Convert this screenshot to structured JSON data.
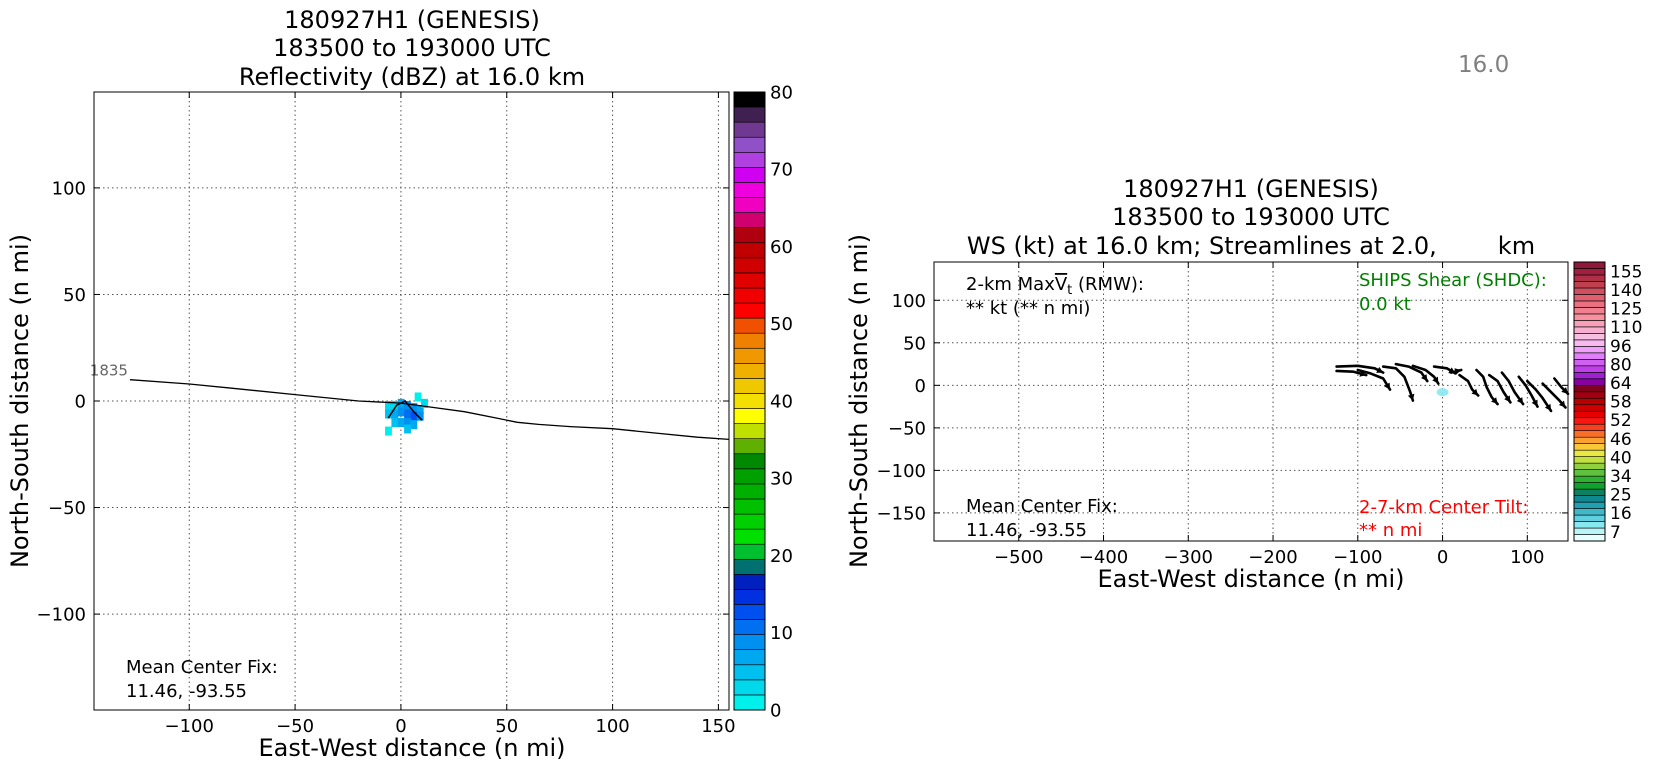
{
  "corner_value": "16.0",
  "chart_data": [
    {
      "type": "heatmap",
      "title_lines": [
        "180927H1 (GENESIS)",
        "183500 to 193000 UTC",
        "Reflectivity (dBZ) at 16.0 km"
      ],
      "xlabel": "East-West distance (n mi)",
      "ylabel": "North-South distance (n mi)",
      "xlim": [
        -145,
        155
      ],
      "ylim": [
        -145,
        145
      ],
      "xticks": [
        -100,
        -50,
        0,
        50,
        100,
        150
      ],
      "xtick_labels": [
        "−100",
        "−50",
        "0",
        "50",
        "100",
        "150"
      ],
      "yticks": [
        -100,
        -50,
        0,
        50,
        100
      ],
      "ytick_labels": [
        "−100",
        "−50",
        "0",
        "50",
        "100"
      ],
      "grid": true,
      "track": {
        "label": "1835",
        "points": [
          [
            -128,
            10
          ],
          [
            -100,
            8
          ],
          [
            -80,
            6
          ],
          [
            -50,
            3
          ],
          [
            -20,
            0
          ],
          [
            0,
            -1
          ],
          [
            15,
            -3
          ],
          [
            30,
            -5
          ],
          [
            45,
            -8
          ],
          [
            55,
            -10
          ],
          [
            65,
            -11
          ],
          [
            80,
            -12
          ],
          [
            100,
            -13
          ],
          [
            120,
            -15
          ],
          [
            140,
            -17
          ],
          [
            155,
            -18
          ]
        ]
      },
      "echo_cells": [
        {
          "x": -6,
          "y": -2,
          "dbz": 2
        },
        {
          "x": -3,
          "y": -2,
          "dbz": 2
        },
        {
          "x": 0,
          "y": -1,
          "dbz": 6
        },
        {
          "x": 3,
          "y": -2,
          "dbz": 8
        },
        {
          "x": 6,
          "y": -3,
          "dbz": 8
        },
        {
          "x": 9,
          "y": -4,
          "dbz": 6
        },
        {
          "x": -6,
          "y": -6,
          "dbz": 4
        },
        {
          "x": -3,
          "y": -6,
          "dbz": 6
        },
        {
          "x": 0,
          "y": -5,
          "dbz": 9
        },
        {
          "x": 3,
          "y": -6,
          "dbz": 11
        },
        {
          "x": 6,
          "y": -7,
          "dbz": 12
        },
        {
          "x": 9,
          "y": -7,
          "dbz": 9
        },
        {
          "x": -3,
          "y": -10,
          "dbz": 4
        },
        {
          "x": 0,
          "y": -10,
          "dbz": 7
        },
        {
          "x": 3,
          "y": -10,
          "dbz": 8
        },
        {
          "x": 6,
          "y": -11,
          "dbz": 6
        },
        {
          "x": -6,
          "y": -14,
          "dbz": 1
        },
        {
          "x": 8,
          "y": 2,
          "dbz": 1
        },
        {
          "x": 11,
          "y": -1,
          "dbz": 3
        },
        {
          "x": 3,
          "y": -13,
          "dbz": 4
        }
      ],
      "center_fix_label": "Mean Center Fix:",
      "center_fix_value": "11.46, -93.55",
      "colorbar": {
        "min": 0,
        "max": 80,
        "ticks": [
          0,
          10,
          20,
          30,
          40,
          50,
          60,
          70,
          80
        ],
        "colors": [
          "#00f0ec",
          "#00d8ec",
          "#00c0f0",
          "#00a8f0",
          "#0090f0",
          "#0070f0",
          "#0050f0",
          "#0030e0",
          "#0020c0",
          "#007070",
          "#00c030",
          "#00e000",
          "#00d000",
          "#00c000",
          "#00b000",
          "#00a000",
          "#008800",
          "#60b000",
          "#c0e000",
          "#ffff00",
          "#f4e000",
          "#f0c800",
          "#f0b000",
          "#f09800",
          "#f08000",
          "#f05000",
          "#ff0000",
          "#f00000",
          "#e00000",
          "#d00000",
          "#c00000",
          "#b00010",
          "#d0006e",
          "#f000c0",
          "#f000e0",
          "#d000f0",
          "#b040e0",
          "#9050c8",
          "#703890",
          "#402050",
          "#000000"
        ]
      }
    },
    {
      "type": "heatmap",
      "title_lines": [
        "180927H1 (GENESIS)",
        "183500 to 193000 UTC",
        "WS (kt) at 16.0 km; Streamlines at 2.0,        km"
      ],
      "xlabel": "East-West distance (n mi)",
      "ylabel": "North-South distance (n mi)",
      "xlim": [
        -600,
        148
      ],
      "ylim": [
        -183,
        145
      ],
      "xticks": [
        -500,
        -400,
        -300,
        -200,
        -100,
        0,
        100
      ],
      "xtick_labels": [
        "−500",
        "−400",
        "−300",
        "−200",
        "−100",
        "0",
        "100"
      ],
      "yticks": [
        -150,
        -100,
        -50,
        0,
        50,
        100
      ],
      "ytick_labels": [
        "−150",
        "−100",
        "−50",
        "0",
        "50",
        "100"
      ],
      "grid": true,
      "vmax_label_prefix": "2-km Max",
      "vmax_symbol": "V",
      "vmax_subscript": "t",
      "vmax_label_suffix": " (RMW):",
      "vmax_value": "** kt (** n mi)",
      "ships_label": "SHIPS Shear (SHDC):",
      "ships_value": "0.0 kt",
      "center_fix_label": "Mean Center Fix:",
      "center_fix_value": "11.46, -93.55",
      "tilt_label": "2-7-km Center Tilt:",
      "tilt_value": "** n mi",
      "ws_patch": {
        "x": 0,
        "y": -8,
        "value": 12
      },
      "streamlines": [
        [
          [
            -125,
            22
          ],
          [
            -100,
            23
          ],
          [
            -80,
            20
          ],
          [
            -70,
            15
          ]
        ],
        [
          [
            -125,
            17
          ],
          [
            -105,
            16
          ],
          [
            -90,
            12
          ]
        ],
        [
          [
            -100,
            18
          ],
          [
            -85,
            14
          ],
          [
            -70,
            8
          ],
          [
            -62,
            -5
          ]
        ],
        [
          [
            -70,
            22
          ],
          [
            -55,
            20
          ],
          [
            -45,
            10
          ],
          [
            -38,
            -8
          ],
          [
            -35,
            -18
          ]
        ],
        [
          [
            -55,
            25
          ],
          [
            -40,
            22
          ],
          [
            -25,
            15
          ],
          [
            -18,
            5
          ]
        ],
        [
          [
            -35,
            23
          ],
          [
            -20,
            18
          ],
          [
            -10,
            10
          ],
          [
            -5,
            2
          ]
        ],
        [
          [
            -10,
            22
          ],
          [
            5,
            20
          ],
          [
            15,
            14
          ]
        ],
        [
          [
            10,
            15
          ],
          [
            22,
            18
          ]
        ],
        [
          [
            20,
            12
          ],
          [
            30,
            5
          ],
          [
            35,
            -5
          ],
          [
            42,
            -12
          ]
        ],
        [
          [
            40,
            18
          ],
          [
            48,
            10
          ],
          [
            52,
            -2
          ],
          [
            58,
            -14
          ],
          [
            65,
            -22
          ]
        ],
        [
          [
            55,
            12
          ],
          [
            65,
            5
          ],
          [
            72,
            -8
          ],
          [
            80,
            -20
          ]
        ],
        [
          [
            70,
            15
          ],
          [
            78,
            5
          ],
          [
            85,
            -8
          ],
          [
            95,
            -22
          ]
        ],
        [
          [
            90,
            10
          ],
          [
            98,
            0
          ],
          [
            105,
            -12
          ],
          [
            112,
            -25
          ]
        ],
        [
          [
            100,
            5
          ],
          [
            110,
            -5
          ],
          [
            118,
            -15
          ],
          [
            128,
            -30
          ]
        ],
        [
          [
            118,
            2
          ],
          [
            128,
            -8
          ],
          [
            138,
            -18
          ],
          [
            145,
            -26
          ]
        ],
        [
          [
            132,
            8
          ],
          [
            140,
            -2
          ],
          [
            148,
            -10
          ]
        ]
      ],
      "colorbar": {
        "ticks": [
          7,
          16,
          25,
          34,
          40,
          46,
          52,
          58,
          64,
          80,
          96,
          110,
          125,
          140,
          155
        ],
        "colors": [
          "#e8ffff",
          "#b8f4f8",
          "#88e8f0",
          "#60d0e0",
          "#40b8c8",
          "#20a0b0",
          "#108890",
          "#0c8060",
          "#10a030",
          "#30b030",
          "#60c040",
          "#90d040",
          "#c0e040",
          "#e8e840",
          "#f8c838",
          "#f8a030",
          "#f87028",
          "#f84020",
          "#f81810",
          "#e80000",
          "#d00000",
          "#b80000",
          "#a00010",
          "#800020",
          "#8800a0",
          "#a020d0",
          "#c040e8",
          "#d060f0",
          "#e080f8",
          "#f0a0f8",
          "#f8b8f0",
          "#f8c0e0",
          "#f8b0d0",
          "#f8a0b8",
          "#f890a0",
          "#f08090",
          "#e87080",
          "#e06070",
          "#d05060",
          "#c04050",
          "#b03048",
          "#a02040",
          "#901838"
        ]
      }
    }
  ]
}
